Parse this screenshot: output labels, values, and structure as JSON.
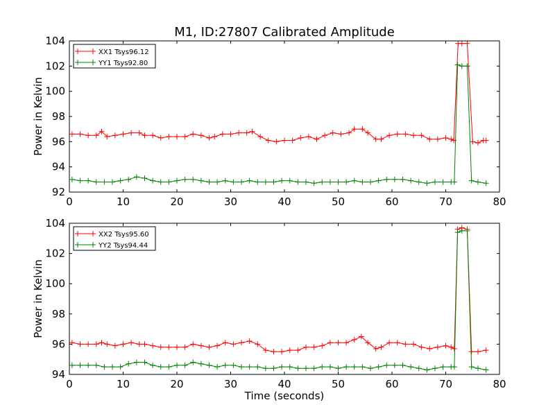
{
  "chart_data": [
    {
      "type": "line",
      "title": "M1, ID:27807 Calibrated Amplitude",
      "xlabel": "",
      "ylabel": "Power in Kelvin",
      "xlim": [
        0,
        80
      ],
      "ylim": [
        92,
        104
      ],
      "xticks": [
        0,
        10,
        20,
        30,
        40,
        50,
        60,
        70,
        80
      ],
      "yticks": [
        92,
        94,
        96,
        98,
        100,
        102,
        104
      ],
      "grid": false,
      "legend_position": "top-left",
      "series": [
        {
          "name": "XX1 Tsys96.12",
          "color": "#ff0000",
          "marker": "+",
          "points": [
            [
              0.5,
              96.6
            ],
            [
              2,
              96.6
            ],
            [
              3.5,
              96.5
            ],
            [
              5,
              96.5
            ],
            [
              6,
              96.8
            ],
            [
              7,
              96.4
            ],
            [
              8.5,
              96.5
            ],
            [
              10,
              96.6
            ],
            [
              11.5,
              96.7
            ],
            [
              13,
              96.7
            ],
            [
              14,
              96.5
            ],
            [
              15.5,
              96.5
            ],
            [
              17,
              96.3
            ],
            [
              18.5,
              96.4
            ],
            [
              20,
              96.4
            ],
            [
              21.5,
              96.4
            ],
            [
              23,
              96.6
            ],
            [
              24.5,
              96.5
            ],
            [
              26,
              96.3
            ],
            [
              27,
              96.4
            ],
            [
              28.5,
              96.6
            ],
            [
              30,
              96.6
            ],
            [
              31.5,
              96.7
            ],
            [
              33,
              96.7
            ],
            [
              34,
              96.8
            ],
            [
              35.5,
              96.4
            ],
            [
              37,
              96.1
            ],
            [
              38.5,
              96.0
            ],
            [
              40,
              96.1
            ],
            [
              41.5,
              96.1
            ],
            [
              43,
              96.3
            ],
            [
              44.5,
              96.4
            ],
            [
              46,
              96.2
            ],
            [
              47.5,
              96.5
            ],
            [
              49,
              96.7
            ],
            [
              50.5,
              96.6
            ],
            [
              52,
              96.7
            ],
            [
              53,
              97.0
            ],
            [
              54.5,
              97.0
            ],
            [
              55.5,
              96.7
            ],
            [
              57,
              96.2
            ],
            [
              58,
              96.2
            ],
            [
              59.5,
              96.5
            ],
            [
              61,
              96.6
            ],
            [
              62.5,
              96.6
            ],
            [
              64,
              96.5
            ],
            [
              65.5,
              96.5
            ],
            [
              67,
              96.2
            ],
            [
              68.5,
              96.2
            ],
            [
              70,
              96.3
            ],
            [
              71,
              96.2
            ],
            [
              71.5,
              96.1
            ],
            [
              72.3,
              103.8
            ],
            [
              73,
              103.8
            ],
            [
              74,
              103.8
            ],
            [
              75,
              96.0
            ],
            [
              76,
              95.9
            ],
            [
              77,
              96.1
            ],
            [
              77.5,
              96.1
            ]
          ]
        },
        {
          "name": "YY1 Tsys92.80",
          "color": "#008000",
          "marker": "+",
          "points": [
            [
              0.5,
              93.0
            ],
            [
              2,
              92.9
            ],
            [
              3.5,
              92.9
            ],
            [
              5,
              92.8
            ],
            [
              6.5,
              92.8
            ],
            [
              8,
              92.8
            ],
            [
              9.5,
              92.9
            ],
            [
              11,
              93.0
            ],
            [
              12.5,
              93.2
            ],
            [
              14,
              93.1
            ],
            [
              15.5,
              92.9
            ],
            [
              17,
              92.8
            ],
            [
              18.5,
              92.8
            ],
            [
              20,
              92.9
            ],
            [
              21.5,
              93.0
            ],
            [
              23,
              93.0
            ],
            [
              24.5,
              92.9
            ],
            [
              26,
              92.8
            ],
            [
              27.5,
              92.8
            ],
            [
              29,
              92.9
            ],
            [
              30.5,
              92.8
            ],
            [
              32,
              92.8
            ],
            [
              33.5,
              92.9
            ],
            [
              35,
              92.8
            ],
            [
              36.5,
              92.8
            ],
            [
              38,
              92.8
            ],
            [
              39.5,
              92.9
            ],
            [
              41,
              92.9
            ],
            [
              42.5,
              92.8
            ],
            [
              44,
              92.8
            ],
            [
              45.5,
              92.7
            ],
            [
              47,
              92.8
            ],
            [
              48.5,
              92.8
            ],
            [
              50,
              92.8
            ],
            [
              51.5,
              92.8
            ],
            [
              53,
              92.9
            ],
            [
              54.5,
              92.8
            ],
            [
              56,
              92.8
            ],
            [
              57.5,
              92.9
            ],
            [
              59,
              93.0
            ],
            [
              60.5,
              93.0
            ],
            [
              62,
              93.0
            ],
            [
              63.5,
              92.9
            ],
            [
              65,
              92.8
            ],
            [
              66.5,
              92.7
            ],
            [
              68,
              92.8
            ],
            [
              69.5,
              92.8
            ],
            [
              71,
              92.8
            ],
            [
              71.6,
              92.8
            ],
            [
              72.2,
              102.1
            ],
            [
              73,
              102.0
            ],
            [
              74,
              102.0
            ],
            [
              74.8,
              92.9
            ],
            [
              76,
              92.8
            ],
            [
              77.5,
              92.7
            ]
          ]
        }
      ]
    },
    {
      "type": "line",
      "title": "",
      "xlabel": "Time (seconds)",
      "ylabel": "Power in Kelvin",
      "xlim": [
        0,
        80
      ],
      "ylim": [
        94,
        104
      ],
      "xticks": [
        0,
        10,
        20,
        30,
        40,
        50,
        60,
        70,
        80
      ],
      "yticks": [
        94,
        96,
        98,
        100,
        102,
        104
      ],
      "grid": false,
      "legend_position": "top-left",
      "series": [
        {
          "name": "XX2 Tsys95.60",
          "color": "#ff0000",
          "marker": "+",
          "points": [
            [
              0.5,
              96.1
            ],
            [
              2,
              96.0
            ],
            [
              3.5,
              96.0
            ],
            [
              5,
              96.0
            ],
            [
              6,
              96.1
            ],
            [
              7,
              96.0
            ],
            [
              8.5,
              95.9
            ],
            [
              10,
              96.0
            ],
            [
              11.5,
              96.1
            ],
            [
              13,
              96.0
            ],
            [
              14,
              96.0
            ],
            [
              15.5,
              95.9
            ],
            [
              17,
              95.8
            ],
            [
              18.5,
              95.8
            ],
            [
              20,
              95.8
            ],
            [
              21.5,
              95.8
            ],
            [
              23,
              96.0
            ],
            [
              24.5,
              95.9
            ],
            [
              26,
              95.8
            ],
            [
              27.5,
              95.9
            ],
            [
              29,
              96.1
            ],
            [
              30.5,
              96.0
            ],
            [
              32,
              96.1
            ],
            [
              33.5,
              96.2
            ],
            [
              35,
              96.0
            ],
            [
              36.5,
              95.6
            ],
            [
              38,
              95.5
            ],
            [
              39.5,
              95.5
            ],
            [
              41,
              95.6
            ],
            [
              42.5,
              95.6
            ],
            [
              44,
              95.8
            ],
            [
              45.5,
              95.8
            ],
            [
              47,
              95.9
            ],
            [
              48.5,
              96.1
            ],
            [
              50,
              96.1
            ],
            [
              51.5,
              96.1
            ],
            [
              53,
              96.3
            ],
            [
              54.3,
              96.5
            ],
            [
              55.5,
              96.1
            ],
            [
              57,
              95.7
            ],
            [
              58,
              95.8
            ],
            [
              59.5,
              96.1
            ],
            [
              61,
              96.1
            ],
            [
              62.5,
              96.0
            ],
            [
              64,
              96.0
            ],
            [
              65.5,
              95.8
            ],
            [
              67,
              95.7
            ],
            [
              68.5,
              95.8
            ],
            [
              70,
              95.9
            ],
            [
              71,
              95.8
            ],
            [
              71.6,
              95.7
            ],
            [
              72.2,
              103.6
            ],
            [
              73,
              103.7
            ],
            [
              74,
              103.6
            ],
            [
              74.8,
              95.5
            ],
            [
              76,
              95.5
            ],
            [
              77.5,
              95.6
            ]
          ]
        },
        {
          "name": "YY2 Tsys94.44",
          "color": "#008000",
          "marker": "+",
          "points": [
            [
              0.5,
              94.6
            ],
            [
              2,
              94.6
            ],
            [
              3.5,
              94.6
            ],
            [
              5,
              94.6
            ],
            [
              6.5,
              94.5
            ],
            [
              8,
              94.5
            ],
            [
              9.5,
              94.5
            ],
            [
              11,
              94.7
            ],
            [
              12.5,
              94.8
            ],
            [
              14,
              94.8
            ],
            [
              15.5,
              94.6
            ],
            [
              17,
              94.5
            ],
            [
              18.5,
              94.5
            ],
            [
              20,
              94.6
            ],
            [
              21.5,
              94.6
            ],
            [
              23,
              94.8
            ],
            [
              24.5,
              94.7
            ],
            [
              26,
              94.6
            ],
            [
              27.5,
              94.5
            ],
            [
              29,
              94.6
            ],
            [
              30.5,
              94.6
            ],
            [
              32,
              94.5
            ],
            [
              33.5,
              94.5
            ],
            [
              35,
              94.5
            ],
            [
              36.5,
              94.4
            ],
            [
              38,
              94.4
            ],
            [
              39.5,
              94.5
            ],
            [
              41,
              94.5
            ],
            [
              42.5,
              94.4
            ],
            [
              44,
              94.4
            ],
            [
              45.5,
              94.4
            ],
            [
              47,
              94.5
            ],
            [
              48.5,
              94.5
            ],
            [
              50,
              94.4
            ],
            [
              51.5,
              94.5
            ],
            [
              53,
              94.5
            ],
            [
              54.5,
              94.5
            ],
            [
              56,
              94.4
            ],
            [
              57.5,
              94.5
            ],
            [
              59,
              94.6
            ],
            [
              60.5,
              94.6
            ],
            [
              62,
              94.6
            ],
            [
              63.5,
              94.5
            ],
            [
              65,
              94.4
            ],
            [
              66.5,
              94.3
            ],
            [
              68,
              94.4
            ],
            [
              69.5,
              94.5
            ],
            [
              71,
              94.5
            ],
            [
              71.6,
              94.5
            ],
            [
              72.2,
              103.4
            ],
            [
              73,
              103.5
            ],
            [
              74,
              103.5
            ],
            [
              74.8,
              94.5
            ],
            [
              76,
              94.4
            ],
            [
              77.5,
              94.3
            ]
          ]
        }
      ]
    }
  ]
}
